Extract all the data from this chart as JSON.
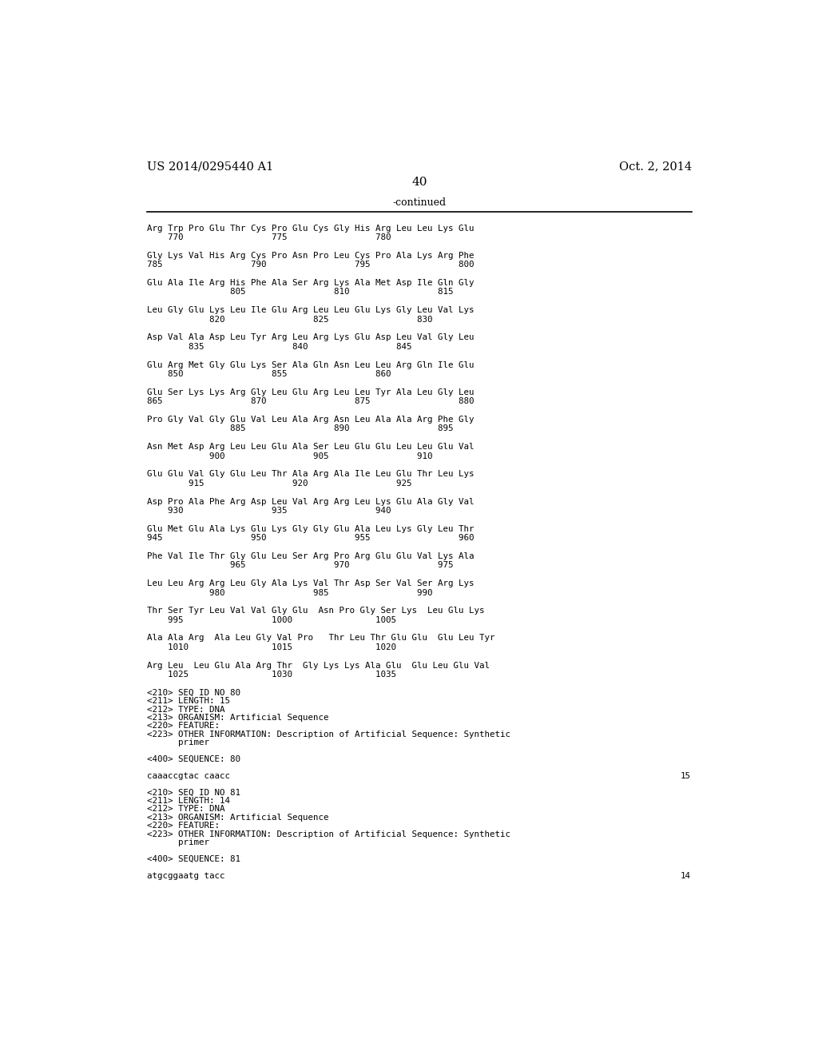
{
  "page_number": "40",
  "header_left": "US 2014/0295440 A1",
  "header_right": "Oct. 2, 2014",
  "continued_label": "-continued",
  "background_color": "#ffffff",
  "text_color": "#000000",
  "monospace_lines": [
    "Arg Trp Pro Glu Thr Cys Pro Glu Cys Gly His Arg Leu Leu Lys Glu",
    "    770                 775                 780",
    "",
    "Gly Lys Val His Arg Cys Pro Asn Pro Leu Cys Pro Ala Lys Arg Phe",
    "785                 790                 795                 800",
    "",
    "Glu Ala Ile Arg His Phe Ala Ser Arg Lys Ala Met Asp Ile Gln Gly",
    "                805                 810                 815",
    "",
    "Leu Gly Glu Lys Leu Ile Glu Arg Leu Leu Glu Lys Gly Leu Val Lys",
    "            820                 825                 830",
    "",
    "Asp Val Ala Asp Leu Tyr Arg Leu Arg Lys Glu Asp Leu Val Gly Leu",
    "        835                 840                 845",
    "",
    "Glu Arg Met Gly Glu Lys Ser Ala Gln Asn Leu Leu Arg Gln Ile Glu",
    "    850                 855                 860",
    "",
    "Glu Ser Lys Lys Arg Gly Leu Glu Arg Leu Leu Tyr Ala Leu Gly Leu",
    "865                 870                 875                 880",
    "",
    "Pro Gly Val Gly Glu Val Leu Ala Arg Asn Leu Ala Ala Arg Phe Gly",
    "                885                 890                 895",
    "",
    "Asn Met Asp Arg Leu Leu Glu Ala Ser Leu Glu Glu Leu Leu Glu Val",
    "            900                 905                 910",
    "",
    "Glu Glu Val Gly Glu Leu Thr Ala Arg Ala Ile Leu Glu Thr Leu Lys",
    "        915                 920                 925",
    "",
    "Asp Pro Ala Phe Arg Asp Leu Val Arg Arg Leu Lys Glu Ala Gly Val",
    "    930                 935                 940",
    "",
    "Glu Met Glu Ala Lys Glu Lys Gly Gly Glu Ala Leu Lys Gly Leu Thr",
    "945                 950                 955                 960",
    "",
    "Phe Val Ile Thr Gly Glu Leu Ser Arg Pro Arg Glu Glu Val Lys Ala",
    "                965                 970                 975",
    "",
    "Leu Leu Arg Arg Leu Gly Ala Lys Val Thr Asp Ser Val Ser Arg Lys",
    "            980                 985                 990",
    "",
    "Thr Ser Tyr Leu Val Val Gly Glu  Asn Pro Gly Ser Lys  Leu Glu Lys",
    "    995                 1000                1005",
    "",
    "Ala Ala Arg  Ala Leu Gly Val Pro   Thr Leu Thr Glu Glu  Glu Leu Tyr",
    "    1010                1015                1020",
    "",
    "Arg Leu  Leu Glu Ala Arg Thr  Gly Lys Lys Ala Glu  Glu Leu Glu Val",
    "    1025                1030                1035"
  ],
  "seq80_lines": [
    "<210> SEQ ID NO 80",
    "<211> LENGTH: 15",
    "<212> TYPE: DNA",
    "<213> ORGANISM: Artificial Sequence",
    "<220> FEATURE:",
    "<223> OTHER INFORMATION: Description of Artificial Sequence: Synthetic",
    "      primer"
  ],
  "seq80_400": "<400> SEQUENCE: 80",
  "seq80_data": "caaaccgtac caacc",
  "seq80_num": "15",
  "seq81_lines": [
    "<210> SEQ ID NO 81",
    "<211> LENGTH: 14",
    "<212> TYPE: DNA",
    "<213> ORGANISM: Artificial Sequence",
    "<220> FEATURE:",
    "<223> OTHER INFORMATION: Description of Artificial Sequence: Synthetic",
    "      primer"
  ],
  "seq81_400": "<400> SEQUENCE: 81",
  "seq81_data": "atgcggaatg tacc",
  "seq81_num": "14"
}
